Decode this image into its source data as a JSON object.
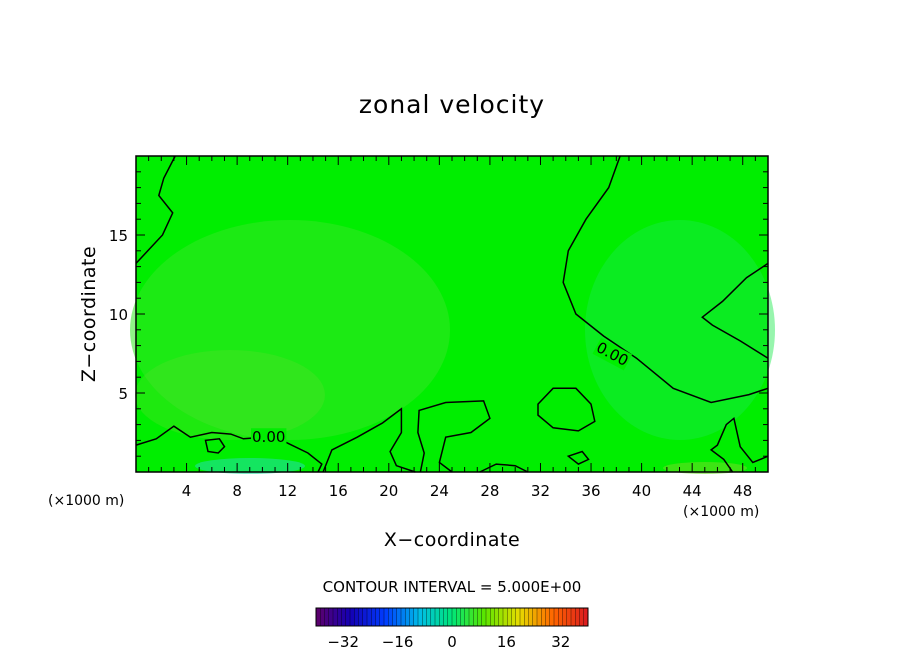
{
  "chart_data": {
    "type": "heatmap",
    "title": "zonal velocity",
    "xlabel": "X−coordinate",
    "ylabel": "Z−coordinate",
    "x_unit": "(×1000 m)",
    "y_unit": "(×1000 m)",
    "xlim": [
      0,
      50
    ],
    "ylim": [
      0,
      20
    ],
    "x_ticks": [
      4,
      8,
      12,
      16,
      20,
      24,
      28,
      32,
      36,
      40,
      44,
      48
    ],
    "y_ticks": [
      5,
      10,
      15
    ],
    "x_tick_labels": [
      "4",
      "8",
      "12",
      "16",
      "20",
      "24",
      "28",
      "32",
      "36",
      "40",
      "44",
      "48"
    ],
    "y_tick_labels": [
      "5",
      "10",
      "15"
    ],
    "contour_interval_label": "CONTOUR INTERVAL = 5.000E+00",
    "contour_labels": [
      {
        "text": "0.00",
        "x": 10.5,
        "z": 2.2
      },
      {
        "text": "0.00",
        "x": 37.5,
        "z": 7.5
      }
    ],
    "colorbar": {
      "min": -40,
      "max": 40,
      "ticks": [
        -32,
        -16,
        0,
        16,
        32
      ],
      "tick_labels": [
        "−32",
        "−16",
        "0",
        "16",
        "32"
      ]
    },
    "zero_contours": [
      {
        "name": "upper-right",
        "points": [
          [
            38.3,
            20
          ],
          [
            37.4,
            18
          ],
          [
            35.6,
            16
          ],
          [
            34.2,
            14
          ],
          [
            33.8,
            12
          ],
          [
            34.8,
            10
          ],
          [
            37.0,
            8.6
          ],
          [
            39.6,
            7.2
          ],
          [
            42.5,
            5.3
          ],
          [
            45.5,
            4.4
          ],
          [
            48.5,
            4.9
          ],
          [
            50,
            5.3
          ]
        ]
      },
      {
        "name": "far-right-upper",
        "points": [
          [
            50,
            13.2
          ],
          [
            48.3,
            12.3
          ],
          [
            46.4,
            10.8
          ],
          [
            44.8,
            9.8
          ],
          [
            45.6,
            9.3
          ],
          [
            47.8,
            8.3
          ],
          [
            50,
            7.2
          ]
        ]
      },
      {
        "name": "upper-left",
        "points": [
          [
            3.1,
            20
          ],
          [
            2.2,
            18.6
          ],
          [
            1.8,
            17.5
          ],
          [
            2.9,
            16.4
          ],
          [
            2.1,
            15
          ],
          [
            0,
            13.2
          ]
        ]
      },
      {
        "name": "bottom-left",
        "points": [
          [
            0,
            1.7
          ],
          [
            1.6,
            2.1
          ],
          [
            3.0,
            2.9
          ],
          [
            4.3,
            2.2
          ],
          [
            6.0,
            2.5
          ],
          [
            7.5,
            2.4
          ],
          [
            8.5,
            2.1
          ],
          [
            10.0,
            2.2
          ],
          [
            11.8,
            1.9
          ],
          [
            13.6,
            1.2
          ],
          [
            14.7,
            0.5
          ],
          [
            14.4,
            0
          ]
        ]
      },
      {
        "name": "bottom-mid",
        "points": [
          [
            14.8,
            0
          ],
          [
            15.5,
            1.4
          ],
          [
            17.5,
            2.2
          ],
          [
            19.5,
            3.1
          ],
          [
            21.0,
            4.0
          ],
          [
            21.0,
            2.5
          ],
          [
            20.1,
            1.3
          ],
          [
            20.6,
            0.4
          ],
          [
            22.1,
            0
          ]
        ]
      },
      {
        "name": "bottom-center",
        "points": [
          [
            22.5,
            0
          ],
          [
            22.8,
            1.2
          ],
          [
            22.3,
            2.5
          ],
          [
            22.4,
            3.9
          ],
          [
            24.5,
            4.4
          ],
          [
            27.5,
            4.5
          ],
          [
            28.0,
            3.4
          ],
          [
            26.5,
            2.5
          ],
          [
            24.5,
            2.2
          ],
          [
            24.0,
            0.6
          ],
          [
            25.0,
            0
          ]
        ]
      },
      {
        "name": "oval-32-36",
        "closed": true,
        "points": [
          [
            31.8,
            4.3
          ],
          [
            33.0,
            5.3
          ],
          [
            34.8,
            5.3
          ],
          [
            36.0,
            4.3
          ],
          [
            36.3,
            3.2
          ],
          [
            35.0,
            2.6
          ],
          [
            33.0,
            2.8
          ],
          [
            31.8,
            3.6
          ]
        ]
      },
      {
        "name": "bottom-right-patch",
        "points": [
          [
            50,
            1.0
          ],
          [
            48.8,
            0.6
          ],
          [
            47.8,
            1.6
          ],
          [
            47.3,
            3.4
          ],
          [
            46.7,
            3.0
          ],
          [
            46.0,
            1.7
          ],
          [
            45.5,
            1.4
          ],
          [
            46.5,
            0.8
          ],
          [
            47.2,
            0
          ]
        ]
      },
      {
        "name": "small-ring-1",
        "closed": true,
        "points": [
          [
            5.5,
            2.0
          ],
          [
            6.6,
            2.1
          ],
          [
            7.0,
            1.6
          ],
          [
            6.5,
            1.2
          ],
          [
            5.7,
            1.3
          ]
        ]
      },
      {
        "name": "small-ring-2",
        "closed": true,
        "points": [
          [
            34.2,
            1.0
          ],
          [
            35.3,
            1.3
          ],
          [
            35.8,
            0.8
          ],
          [
            35.0,
            0.5
          ]
        ]
      },
      {
        "name": "bottom-segment",
        "points": [
          [
            27.2,
            0
          ],
          [
            28.5,
            0.5
          ],
          [
            30.0,
            0.4
          ],
          [
            31.0,
            0
          ]
        ]
      }
    ]
  }
}
